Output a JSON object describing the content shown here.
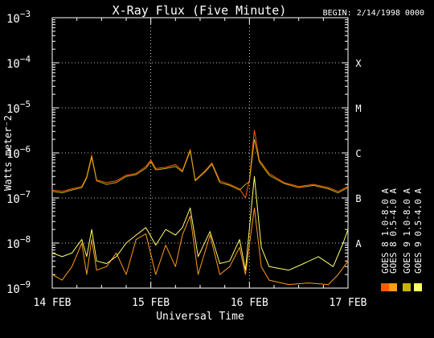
{
  "chart_data": {
    "type": "line",
    "title": "X-Ray Flux (Five Minute)",
    "begin_label": "BEGIN: 2/14/1998 0000",
    "xlabel": "Universal Time",
    "ylabel": "Watts meter⁻2",
    "y_scale": "log",
    "ylim": [
      1e-09,
      0.001
    ],
    "y_ticks": [
      {
        "base": "10",
        "exp": "−3",
        "value": 0.001
      },
      {
        "base": "10",
        "exp": "−4",
        "value": 0.0001
      },
      {
        "base": "10",
        "exp": "−5",
        "value": 1e-05
      },
      {
        "base": "10",
        "exp": "−6",
        "value": 1e-06
      },
      {
        "base": "10",
        "exp": "−7",
        "value": 1e-07
      },
      {
        "base": "10",
        "exp": "−8",
        "value": 1e-08
      },
      {
        "base": "10",
        "exp": "−9",
        "value": 1e-09
      }
    ],
    "x_ticks": [
      {
        "label": "14 FEB",
        "day": 0
      },
      {
        "label": "15 FEB",
        "day": 1
      },
      {
        "label": "16 FEB",
        "day": 2
      },
      {
        "label": "17 FEB",
        "day": 3
      }
    ],
    "class_labels": [
      {
        "label": "X",
        "value": 0.0001
      },
      {
        "label": "M",
        "value": 1e-05
      },
      {
        "label": "C",
        "value": 1e-06
      },
      {
        "label": "B",
        "value": 1e-07
      },
      {
        "label": "A",
        "value": 1e-08
      }
    ],
    "grid": true,
    "legend_position": "right-vertical",
    "series": [
      {
        "name": "GOES 8  1.0-8.0 A",
        "color": "#ff5a0a",
        "points": [
          {
            "x": 0.0,
            "y": 1.5e-07
          },
          {
            "x": 0.1,
            "y": 1.4e-07
          },
          {
            "x": 0.2,
            "y": 1.6e-07
          },
          {
            "x": 0.3,
            "y": 1.8e-07
          },
          {
            "x": 0.35,
            "y": 3e-07
          },
          {
            "x": 0.4,
            "y": 9e-07
          },
          {
            "x": 0.45,
            "y": 2.5e-07
          },
          {
            "x": 0.55,
            "y": 2.2e-07
          },
          {
            "x": 0.65,
            "y": 2.4e-07
          },
          {
            "x": 0.75,
            "y": 3.2e-07
          },
          {
            "x": 0.85,
            "y": 3.5e-07
          },
          {
            "x": 0.95,
            "y": 5e-07
          },
          {
            "x": 1.0,
            "y": 7e-07
          },
          {
            "x": 1.05,
            "y": 4.5e-07
          },
          {
            "x": 1.15,
            "y": 4.8e-07
          },
          {
            "x": 1.25,
            "y": 5.5e-07
          },
          {
            "x": 1.32,
            "y": 4e-07
          },
          {
            "x": 1.4,
            "y": 1.2e-06
          },
          {
            "x": 1.45,
            "y": 2.5e-07
          },
          {
            "x": 1.55,
            "y": 4e-07
          },
          {
            "x": 1.62,
            "y": 6e-07
          },
          {
            "x": 1.7,
            "y": 2.4e-07
          },
          {
            "x": 1.8,
            "y": 2e-07
          },
          {
            "x": 1.9,
            "y": 1.6e-07
          },
          {
            "x": 1.96,
            "y": 1e-07
          },
          {
            "x": 2.0,
            "y": 2.5e-07
          },
          {
            "x": 2.05,
            "y": 3.2e-06
          },
          {
            "x": 2.1,
            "y": 7e-07
          },
          {
            "x": 2.2,
            "y": 3.5e-07
          },
          {
            "x": 2.35,
            "y": 2.2e-07
          },
          {
            "x": 2.5,
            "y": 1.8e-07
          },
          {
            "x": 2.65,
            "y": 2e-07
          },
          {
            "x": 2.8,
            "y": 1.7e-07
          },
          {
            "x": 2.9,
            "y": 1.4e-07
          },
          {
            "x": 3.0,
            "y": 1.8e-07
          }
        ]
      },
      {
        "name": "GOES 8  0.5-4.0 A",
        "color": "#ff9a1a",
        "points": [
          {
            "x": 0.0,
            "y": 2e-09
          },
          {
            "x": 0.1,
            "y": 1.5e-09
          },
          {
            "x": 0.2,
            "y": 3e-09
          },
          {
            "x": 0.3,
            "y": 1e-08
          },
          {
            "x": 0.35,
            "y": 2e-09
          },
          {
            "x": 0.4,
            "y": 1.2e-08
          },
          {
            "x": 0.45,
            "y": 2.5e-09
          },
          {
            "x": 0.55,
            "y": 3e-09
          },
          {
            "x": 0.65,
            "y": 6e-09
          },
          {
            "x": 0.75,
            "y": 2e-09
          },
          {
            "x": 0.85,
            "y": 1.2e-08
          },
          {
            "x": 0.95,
            "y": 1.6e-08
          },
          {
            "x": 1.05,
            "y": 2e-09
          },
          {
            "x": 1.15,
            "y": 9e-09
          },
          {
            "x": 1.25,
            "y": 3e-09
          },
          {
            "x": 1.32,
            "y": 1.5e-08
          },
          {
            "x": 1.4,
            "y": 4e-08
          },
          {
            "x": 1.48,
            "y": 2e-09
          },
          {
            "x": 1.6,
            "y": 1.5e-08
          },
          {
            "x": 1.7,
            "y": 2e-09
          },
          {
            "x": 1.8,
            "y": 3e-09
          },
          {
            "x": 1.9,
            "y": 8e-09
          },
          {
            "x": 1.96,
            "y": 2e-09
          },
          {
            "x": 2.05,
            "y": 6e-08
          },
          {
            "x": 2.12,
            "y": 3e-09
          },
          {
            "x": 2.2,
            "y": 1.5e-09
          },
          {
            "x": 2.4,
            "y": 1.2e-09
          },
          {
            "x": 2.6,
            "y": 1.3e-09
          },
          {
            "x": 2.8,
            "y": 1.2e-09
          },
          {
            "x": 2.9,
            "y": 2e-09
          },
          {
            "x": 3.0,
            "y": 4e-09
          }
        ]
      },
      {
        "name": "GOES 9  1.0-8.0 A",
        "color": "#c8b400",
        "points": [
          {
            "x": 0.0,
            "y": 1.4e-07
          },
          {
            "x": 0.1,
            "y": 1.3e-07
          },
          {
            "x": 0.2,
            "y": 1.5e-07
          },
          {
            "x": 0.3,
            "y": 1.7e-07
          },
          {
            "x": 0.35,
            "y": 2.8e-07
          },
          {
            "x": 0.4,
            "y": 8e-07
          },
          {
            "x": 0.45,
            "y": 2.4e-07
          },
          {
            "x": 0.55,
            "y": 2e-07
          },
          {
            "x": 0.65,
            "y": 2.2e-07
          },
          {
            "x": 0.75,
            "y": 3e-07
          },
          {
            "x": 0.85,
            "y": 3.3e-07
          },
          {
            "x": 0.95,
            "y": 4.6e-07
          },
          {
            "x": 1.0,
            "y": 6.4e-07
          },
          {
            "x": 1.05,
            "y": 4.2e-07
          },
          {
            "x": 1.15,
            "y": 4.5e-07
          },
          {
            "x": 1.25,
            "y": 5e-07
          },
          {
            "x": 1.32,
            "y": 3.8e-07
          },
          {
            "x": 1.4,
            "y": 1.1e-06
          },
          {
            "x": 1.45,
            "y": 2.4e-07
          },
          {
            "x": 1.55,
            "y": 3.8e-07
          },
          {
            "x": 1.62,
            "y": 5.6e-07
          },
          {
            "x": 1.7,
            "y": 2.2e-07
          },
          {
            "x": 1.8,
            "y": 1.9e-07
          },
          {
            "x": 1.9,
            "y": 1.5e-07
          },
          {
            "x": 1.96,
            "y": 2e-07
          },
          {
            "x": 2.0,
            "y": 2.3e-07
          },
          {
            "x": 2.05,
            "y": 2e-06
          },
          {
            "x": 2.1,
            "y": 6.4e-07
          },
          {
            "x": 2.2,
            "y": 3.2e-07
          },
          {
            "x": 2.35,
            "y": 2.1e-07
          },
          {
            "x": 2.5,
            "y": 1.7e-07
          },
          {
            "x": 2.65,
            "y": 1.9e-07
          },
          {
            "x": 2.8,
            "y": 1.6e-07
          },
          {
            "x": 2.9,
            "y": 1.3e-07
          },
          {
            "x": 3.0,
            "y": 1.7e-07
          }
        ]
      },
      {
        "name": "GOES 9  0.5-4.0 A",
        "color": "#ffff66",
        "points": [
          {
            "x": 0.0,
            "y": 6e-09
          },
          {
            "x": 0.1,
            "y": 5e-09
          },
          {
            "x": 0.2,
            "y": 6e-09
          },
          {
            "x": 0.3,
            "y": 1.2e-08
          },
          {
            "x": 0.35,
            "y": 5e-09
          },
          {
            "x": 0.4,
            "y": 2e-08
          },
          {
            "x": 0.45,
            "y": 4e-09
          },
          {
            "x": 0.55,
            "y": 3.5e-09
          },
          {
            "x": 0.65,
            "y": 5e-09
          },
          {
            "x": 0.75,
            "y": 1e-08
          },
          {
            "x": 0.85,
            "y": 1.5e-08
          },
          {
            "x": 0.95,
            "y": 2.2e-08
          },
          {
            "x": 1.05,
            "y": 9e-09
          },
          {
            "x": 1.15,
            "y": 2e-08
          },
          {
            "x": 1.25,
            "y": 1.5e-08
          },
          {
            "x": 1.32,
            "y": 2.2e-08
          },
          {
            "x": 1.4,
            "y": 6e-08
          },
          {
            "x": 1.48,
            "y": 5e-09
          },
          {
            "x": 1.6,
            "y": 1.8e-08
          },
          {
            "x": 1.7,
            "y": 3.5e-09
          },
          {
            "x": 1.8,
            "y": 4e-09
          },
          {
            "x": 1.9,
            "y": 1.2e-08
          },
          {
            "x": 1.96,
            "y": 2.5e-09
          },
          {
            "x": 2.05,
            "y": 3e-07
          },
          {
            "x": 2.12,
            "y": 8e-09
          },
          {
            "x": 2.2,
            "y": 3e-09
          },
          {
            "x": 2.4,
            "y": 2.5e-09
          },
          {
            "x": 2.55,
            "y": 3.5e-09
          },
          {
            "x": 2.7,
            "y": 5e-09
          },
          {
            "x": 2.85,
            "y": 3e-09
          },
          {
            "x": 2.95,
            "y": 1e-08
          },
          {
            "x": 3.0,
            "y": 2e-08
          }
        ]
      }
    ]
  }
}
